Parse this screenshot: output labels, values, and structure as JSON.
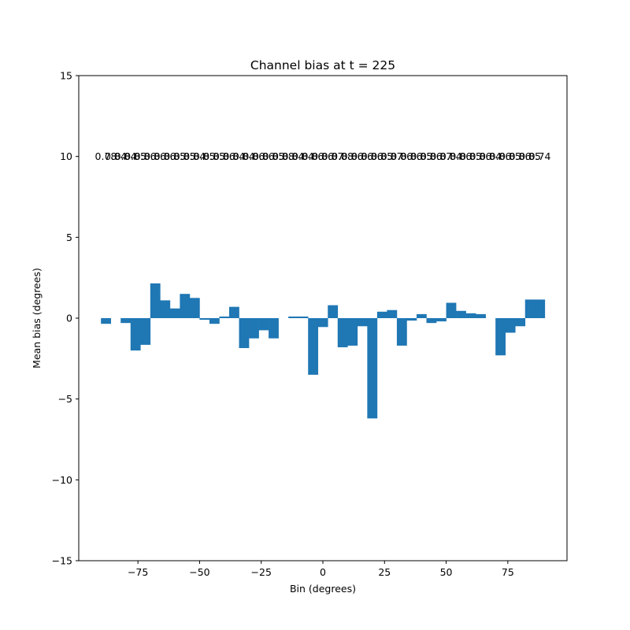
{
  "chart_data": {
    "type": "bar",
    "title": "Channel bias at t = 225",
    "xlabel": "Bin (degrees)",
    "ylabel": "Mean bias (degrees)",
    "xlim": [
      -99,
      99
    ],
    "ylim": [
      -15,
      15
    ],
    "bar_color": "#1f77b4",
    "annotation_y": 10,
    "xticks": [
      -75,
      -50,
      -25,
      0,
      25,
      50,
      75
    ],
    "xtick_labels": [
      "−75",
      "−50",
      "−25",
      "0",
      "25",
      "50",
      "75"
    ],
    "yticks": [
      -15,
      -10,
      -5,
      0,
      5,
      10,
      15
    ],
    "ytick_labels": [
      "−15",
      "−10",
      "−5",
      "0",
      "5",
      "10",
      "15"
    ],
    "x": [
      -88,
      -84,
      -80,
      -76,
      -72,
      -68,
      -64,
      -60,
      -56,
      -52,
      -48,
      -44,
      -40,
      -36,
      -32,
      -28,
      -24,
      -20,
      -16,
      -12,
      -8,
      -4,
      0,
      4,
      8,
      12,
      16,
      20,
      24,
      28,
      32,
      36,
      40,
      44,
      48,
      52,
      56,
      60,
      64,
      68,
      72,
      76,
      80,
      84,
      88
    ],
    "values": [
      -0.35,
      0.0,
      -0.3,
      -2.0,
      -1.65,
      2.15,
      1.1,
      0.6,
      1.5,
      1.25,
      -0.1,
      -0.35,
      0.1,
      0.7,
      -1.85,
      -1.25,
      -0.75,
      -1.25,
      0.0,
      0.1,
      0.1,
      -3.5,
      -0.55,
      0.8,
      -1.8,
      -1.7,
      -0.5,
      -6.2,
      0.4,
      0.5,
      -1.7,
      -0.15,
      0.25,
      -0.3,
      -0.2,
      0.95,
      0.45,
      0.3,
      0.25,
      0.0,
      -2.3,
      -0.9,
      -0.5,
      1.15,
      1.15
    ],
    "labels": [
      "0.78",
      "0.84",
      "0.84",
      "0.85",
      "0.86",
      "0.86",
      "0.86",
      "0.85",
      "0.85",
      "0.84",
      "0.85",
      "0.85",
      "0.86",
      "0.84",
      "0.84",
      "0.86",
      "0.86",
      "0.85",
      "0.88",
      "0.84",
      "0.84",
      "0.86",
      "0.86",
      "0.87",
      "0.88",
      "0.86",
      "0.86",
      "0.86",
      "0.85",
      "0.87",
      "0.86",
      "0.86",
      "0.85",
      "0.86",
      "0.87",
      "0.84",
      "0.86",
      "0.85",
      "0.86",
      "0.84",
      "0.86",
      "0.85",
      "0.86",
      "0.85",
      "0.74"
    ]
  }
}
